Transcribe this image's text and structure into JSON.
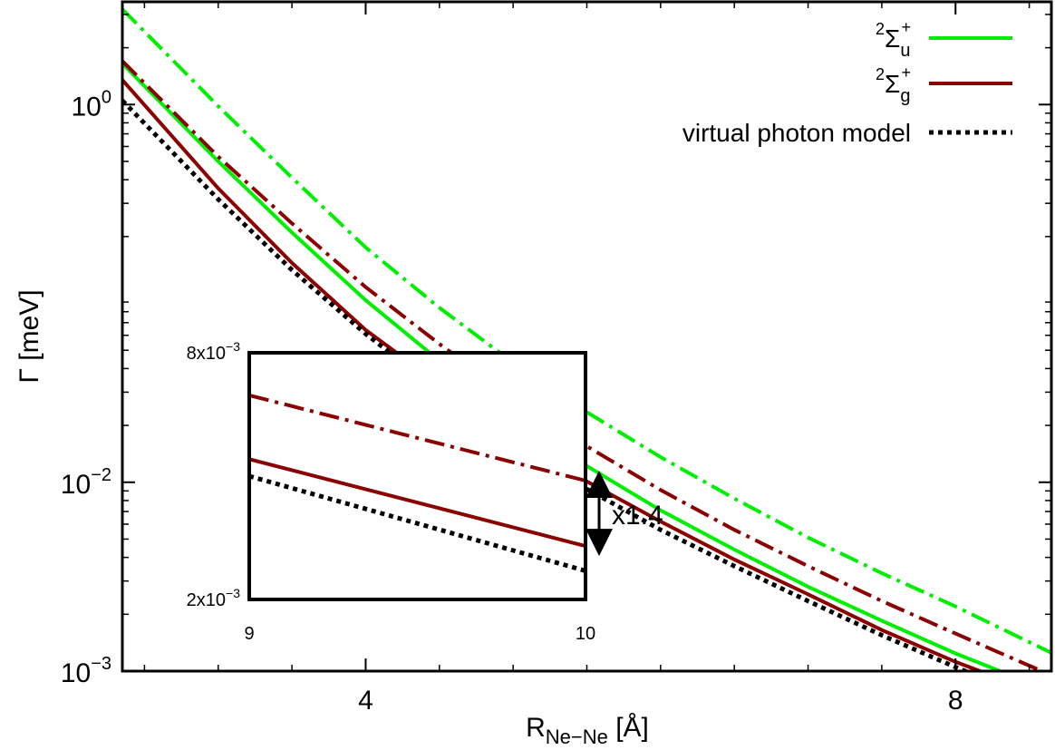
{
  "chart_data": [
    {
      "type": "line",
      "title": "",
      "xlabel": {
        "main": "R",
        "sub": "Ne−Ne",
        "unit": "[Å]"
      },
      "ylabel": {
        "main": "Γ",
        "unit": "[meV]"
      },
      "xlim": [
        2.35,
        8.65
      ],
      "ylim": [
        0.001,
        3.5
      ],
      "yscale": "log",
      "xticks": [
        {
          "value": 4,
          "label": "4"
        },
        {
          "value": 8,
          "label": "8"
        }
      ],
      "yticks": [
        {
          "value": 1,
          "base": "10",
          "exp": "0"
        },
        {
          "value": 0.01,
          "base": "10",
          "exp": "−2"
        },
        {
          "value": 0.001,
          "base": "10",
          "exp": "−3"
        }
      ],
      "grid": false,
      "legend_position": "top-right",
      "series": [
        {
          "name": "²Σu⁺",
          "legend_main": "Σ",
          "legend_pre": "2",
          "legend_sub": "u",
          "legend_sup": "+",
          "color": "#00ee00",
          "style": "solid",
          "x": [
            2.35,
            3.0,
            3.5,
            4.0,
            4.5,
            5.0,
            5.5,
            6.0,
            6.5,
            7.0,
            7.5,
            8.0,
            8.65
          ],
          "y": [
            1.65,
            0.5,
            0.21,
            0.092,
            0.044,
            0.022,
            0.0122,
            0.0071,
            0.0044,
            0.0028,
            0.00185,
            0.00124,
            0.00078
          ]
        },
        {
          "name": "²Σu⁺ (dash-dot)",
          "color": "#00ee00",
          "style": "dashdot",
          "x": [
            2.35,
            3.0,
            3.5,
            4.0,
            4.5,
            5.0,
            5.5,
            6.0,
            6.5,
            7.0,
            7.5,
            8.0,
            8.65
          ],
          "y": [
            3.2,
            0.98,
            0.41,
            0.175,
            0.084,
            0.043,
            0.0235,
            0.0136,
            0.0082,
            0.0051,
            0.0033,
            0.0022,
            0.00125
          ]
        },
        {
          "name": "²Σg⁺",
          "legend_main": "Σ",
          "legend_pre": "2",
          "legend_sub": "g",
          "legend_sup": "+",
          "color": "#8b0000",
          "style": "solid",
          "x": [
            2.35,
            3.0,
            3.5,
            4.0,
            4.5,
            5.0,
            5.5,
            6.0,
            6.5,
            7.0,
            7.5,
            8.0,
            8.65
          ],
          "y": [
            1.35,
            0.36,
            0.145,
            0.064,
            0.033,
            0.0175,
            0.0101,
            0.0062,
            0.0039,
            0.00255,
            0.00165,
            0.00112,
            0.00072
          ]
        },
        {
          "name": "²Σg⁺ (dash-dot)",
          "color": "#8b0000",
          "style": "dashdot",
          "x": [
            2.35,
            3.0,
            3.5,
            4.0,
            4.5,
            5.0,
            5.5,
            6.0,
            6.5,
            7.0,
            7.5,
            8.0,
            8.65
          ],
          "y": [
            1.7,
            0.53,
            0.235,
            0.108,
            0.054,
            0.028,
            0.0155,
            0.0091,
            0.0056,
            0.0036,
            0.00235,
            0.00158,
            0.00095
          ]
        },
        {
          "name": "virtual photon model",
          "legend_main": "virtual photon model",
          "color": "#000000",
          "style": "dotted",
          "x": [
            2.35,
            3.0,
            3.5,
            4.0,
            4.5,
            5.0,
            5.5,
            6.0,
            6.5,
            7.0,
            7.5,
            8.0,
            8.65
          ],
          "y": [
            1.05,
            0.315,
            0.133,
            0.061,
            0.0305,
            0.0162,
            0.0092,
            0.0056,
            0.0036,
            0.00235,
            0.00155,
            0.00105,
            0.00065
          ]
        }
      ]
    },
    {
      "type": "line",
      "title": "",
      "xlim": [
        9,
        10
      ],
      "ylim": [
        0.002,
        0.008
      ],
      "yscale": "log",
      "xticks": [
        {
          "value": 9,
          "label": "9"
        },
        {
          "value": 10,
          "label": "10"
        }
      ],
      "yticks": [
        {
          "value": 0.008,
          "mant": "8x10",
          "exp": "−3"
        },
        {
          "value": 0.002,
          "mant": "2x10",
          "exp": "−3"
        }
      ],
      "annotation": "x1.4",
      "series": [
        {
          "name": "²Σg⁺ (dash-dot)",
          "color": "#8b0000",
          "style": "dashdot",
          "x": [
            9,
            10
          ],
          "y": [
            0.0063,
            0.0039
          ]
        },
        {
          "name": "²Σg⁺",
          "color": "#8b0000",
          "style": "solid",
          "x": [
            9,
            10
          ],
          "y": [
            0.0044,
            0.0027
          ]
        },
        {
          "name": "virtual photon model",
          "color": "#000000",
          "style": "dotted",
          "x": [
            9,
            10
          ],
          "y": [
            0.004,
            0.00235
          ]
        }
      ]
    }
  ]
}
